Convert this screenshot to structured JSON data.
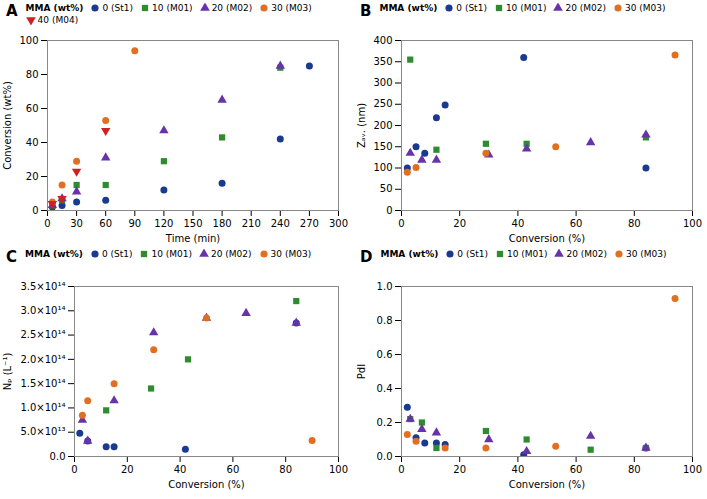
{
  "chart_data": [
    {
      "type": "scatter",
      "title": "A",
      "x_label": "Time (min)",
      "y_label": "Conversion (wt%)",
      "xlim": [
        0,
        300
      ],
      "ylim": [
        0,
        100
      ],
      "xticks": [
        0,
        30,
        60,
        90,
        120,
        150,
        180,
        210,
        240,
        270,
        300
      ],
      "yticks": [
        0,
        20,
        40,
        60,
        80,
        100
      ],
      "grid": false,
      "legend": "top",
      "legend_title": "MMA (wt%)",
      "series": [
        {
          "name": "0 (St1)",
          "color": "#1a3a8f",
          "marker": "circle",
          "x": [
            5,
            15,
            30,
            60,
            120,
            180,
            240,
            270
          ],
          "y": [
            2,
            3,
            5,
            6,
            12,
            16,
            42,
            85
          ]
        },
        {
          "name": "10 (M01)",
          "color": "#2e8b2e",
          "marker": "square",
          "x": [
            5,
            15,
            30,
            60,
            120,
            180,
            240
          ],
          "y": [
            3,
            6,
            15,
            15,
            29,
            43,
            84
          ]
        },
        {
          "name": "20 (M02)",
          "color": "#6633aa",
          "marker": "triangle-up",
          "x": [
            5,
            15,
            30,
            60,
            120,
            180,
            240
          ],
          "y": [
            3,
            7,
            11,
            31,
            47,
            65,
            85
          ]
        },
        {
          "name": "30 (M03)",
          "color": "#e07020",
          "marker": "circle",
          "x": [
            5,
            15,
            30,
            60,
            90
          ],
          "y": [
            5,
            15,
            29,
            53,
            94
          ]
        },
        {
          "name": "40 (M04)",
          "color": "#cc2222",
          "marker": "triangle-down",
          "x": [
            5,
            15,
            30,
            60
          ],
          "y": [
            4,
            7,
            23,
            47
          ]
        }
      ]
    },
    {
      "type": "scatter",
      "title": "B",
      "x_label": "Conversion (%)",
      "y_label": "Zₐᵥ. (nm)",
      "xlim": [
        0,
        100
      ],
      "ylim": [
        0,
        400
      ],
      "xticks": [
        0,
        20,
        40,
        60,
        80,
        100
      ],
      "yticks": [
        0,
        50,
        100,
        150,
        200,
        250,
        300,
        350,
        400
      ],
      "grid": false,
      "legend": "top",
      "legend_title": "MMA (wt%)",
      "series": [
        {
          "name": "0 (St1)",
          "color": "#1a3a8f",
          "marker": "circle",
          "x": [
            2,
            5,
            8,
            12,
            15,
            42,
            84
          ],
          "y": [
            100,
            150,
            135,
            218,
            248,
            360,
            100
          ]
        },
        {
          "name": "10 (M01)",
          "color": "#2e8b2e",
          "marker": "square",
          "x": [
            3,
            12,
            29,
            43,
            84
          ],
          "y": [
            355,
            143,
            157,
            157,
            172
          ]
        },
        {
          "name": "20 (M02)",
          "color": "#6633aa",
          "marker": "triangle-up",
          "x": [
            3,
            7,
            12,
            30,
            43,
            65,
            84
          ],
          "y": [
            135,
            119,
            119,
            131,
            145,
            160,
            178
          ]
        },
        {
          "name": "30 (M03)",
          "color": "#e07020",
          "marker": "circle",
          "x": [
            2,
            5,
            29,
            53,
            94
          ],
          "y": [
            90,
            101,
            135,
            150,
            366
          ]
        }
      ]
    },
    {
      "type": "scatter",
      "title": "C",
      "x_label": "Conversion (%)",
      "y_label": "Nₚ (L⁻¹)",
      "xlim": [
        0,
        100
      ],
      "ylim": [
        0,
        350000000000000.0
      ],
      "xticks": [
        0,
        20,
        40,
        60,
        80,
        100
      ],
      "yticks": [
        {
          "value": 0,
          "label": "0.0"
        },
        {
          "value": 50000000000000.0,
          "label": "5.0×10¹³"
        },
        {
          "value": 100000000000000.0,
          "label": "1.0×10¹⁴"
        },
        {
          "value": 150000000000000.0,
          "label": "1.5×10¹⁴"
        },
        {
          "value": 200000000000000.0,
          "label": "2.0×10¹⁴"
        },
        {
          "value": 250000000000000.0,
          "label": "2.5×10¹⁴"
        },
        {
          "value": 300000000000000.0,
          "label": "3.0×10¹⁴"
        },
        {
          "value": 350000000000000.0,
          "label": "3.5×10¹⁴"
        }
      ],
      "grid": false,
      "legend": "top",
      "legend_title": "MMA (wt%)",
      "series": [
        {
          "name": "0 (St1)",
          "color": "#1a3a8f",
          "marker": "circle",
          "x": [
            2,
            5,
            12,
            15,
            42,
            84
          ],
          "y": [
            48000000000000.0,
            32000000000000.0,
            20000000000000.0,
            20000000000000.0,
            15000000000000.0,
            275000000000000.0
          ]
        },
        {
          "name": "10 (M01)",
          "color": "#2e8b2e",
          "marker": "square",
          "x": [
            12,
            29,
            43,
            84
          ],
          "y": [
            95000000000000.0,
            140000000000000.0,
            200000000000000.0,
            320000000000000.0
          ]
        },
        {
          "name": "20 (M02)",
          "color": "#6633aa",
          "marker": "triangle-up",
          "x": [
            3,
            5,
            15,
            30,
            50,
            65,
            84
          ],
          "y": [
            75000000000000.0,
            32000000000000.0,
            115000000000000.0,
            255000000000000.0,
            285000000000000.0,
            295000000000000.0,
            275000000000000.0
          ]
        },
        {
          "name": "30 (M03)",
          "color": "#e07020",
          "marker": "circle",
          "x": [
            3,
            5,
            15,
            30,
            50,
            90
          ],
          "y": [
            85000000000000.0,
            115000000000000.0,
            150000000000000.0,
            220000000000000.0,
            285000000000000.0,
            33000000000000.0
          ]
        }
      ]
    },
    {
      "type": "scatter",
      "title": "D",
      "x_label": "Conversion (%)",
      "y_label": "PdI",
      "xlim": [
        0,
        100
      ],
      "ylim": [
        0,
        1.0
      ],
      "xticks": [
        0,
        20,
        40,
        60,
        80,
        100
      ],
      "yticks": [
        {
          "value": 0,
          "label": "0.0"
        },
        0.2,
        0.4,
        0.6,
        0.8,
        {
          "value": 1.0,
          "label": "1.0"
        }
      ],
      "grid": false,
      "legend": "top",
      "legend_title": "MMA (wt%)",
      "series": [
        {
          "name": "0 (St1)",
          "color": "#1a3a8f",
          "marker": "circle",
          "x": [
            2,
            5,
            8,
            12,
            15,
            42,
            84
          ],
          "y": [
            0.29,
            0.11,
            0.08,
            0.08,
            0.07,
            0.01,
            0.05
          ]
        },
        {
          "name": "10 (M01)",
          "color": "#2e8b2e",
          "marker": "square",
          "x": [
            3,
            7,
            12,
            29,
            43,
            65,
            84
          ],
          "y": [
            0.22,
            0.2,
            0.05,
            0.15,
            0.1,
            0.04,
            0.05
          ]
        },
        {
          "name": "20 (M02)",
          "color": "#6633aa",
          "marker": "triangle-up",
          "x": [
            3,
            7,
            12,
            30,
            43,
            65,
            84
          ],
          "y": [
            0.22,
            0.16,
            0.14,
            0.1,
            0.03,
            0.12,
            0.05
          ]
        },
        {
          "name": "30 (M03)",
          "color": "#e07020",
          "marker": "circle",
          "x": [
            2,
            5,
            15,
            29,
            53,
            94
          ],
          "y": [
            0.13,
            0.09,
            0.05,
            0.05,
            0.06,
            0.93
          ]
        }
      ]
    }
  ]
}
